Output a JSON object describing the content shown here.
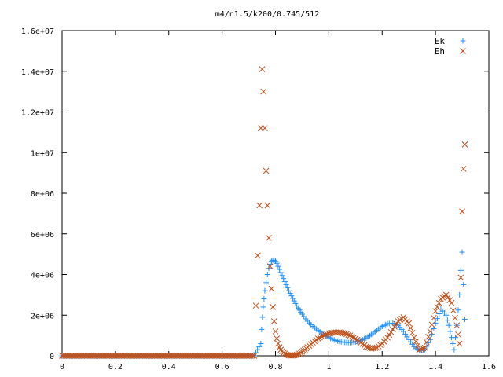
{
  "chart_data": {
    "type": "scatter",
    "title": "m4/n1.5/k200/0.745/512",
    "xlabel": "",
    "ylabel": "",
    "xlim": [
      0,
      1.6
    ],
    "ylim": [
      0,
      16000000
    ],
    "grid": false,
    "legend_position": "top-right",
    "x_ticks": [
      0,
      0.2,
      0.4,
      0.6,
      0.8,
      1.0,
      1.2,
      1.4,
      1.6
    ],
    "x_tick_labels": [
      "0",
      "0.2",
      "0.4",
      "0.6",
      "0.8",
      "1",
      "1.2",
      "1.4",
      "1.6"
    ],
    "y_ticks": [
      0,
      2000000,
      4000000,
      6000000,
      8000000,
      10000000,
      12000000,
      14000000,
      16000000
    ],
    "y_tick_labels": [
      "0",
      "2e+06",
      "4e+06",
      "6e+06",
      "8e+06",
      "1e+07",
      "1.2e+07",
      "1.4e+07",
      "1.6e+07"
    ],
    "series": [
      {
        "name": "Ek",
        "marker": "plus",
        "color": "#1f8fff",
        "x": [
          0,
          0.025,
          0.05,
          0.075,
          0.1,
          0.125,
          0.15,
          0.175,
          0.2,
          0.225,
          0.25,
          0.275,
          0.3,
          0.325,
          0.35,
          0.375,
          0.4,
          0.425,
          0.45,
          0.475,
          0.5,
          0.525,
          0.55,
          0.575,
          0.6,
          0.625,
          0.65,
          0.675,
          0.7,
          0.72,
          0.745,
          0.748,
          0.751,
          0.754,
          0.757,
          0.76,
          0.765,
          0.77,
          0.775,
          0.78,
          0.785,
          0.79,
          0.795,
          0.8,
          0.805,
          0.81,
          0.815,
          0.82,
          0.83,
          0.84,
          0.85,
          0.86,
          0.87,
          0.88,
          0.89,
          0.9,
          0.92,
          0.94,
          0.96,
          0.98,
          1.0,
          1.02,
          1.04,
          1.06,
          1.08,
          1.1,
          1.12,
          1.14,
          1.16,
          1.18,
          1.2,
          1.22,
          1.24,
          1.26,
          1.28,
          1.3,
          1.32,
          1.34,
          1.36,
          1.38,
          1.4,
          1.42,
          1.44,
          1.45,
          1.46,
          1.47,
          1.48,
          1.49,
          1.495,
          1.5,
          1.505,
          1.51
        ],
        "y": [
          0,
          0,
          0,
          0,
          0,
          0,
          0,
          0,
          0,
          0,
          0,
          0,
          0,
          0,
          0,
          0,
          0,
          0,
          0,
          0,
          0,
          0,
          0,
          0,
          0,
          0,
          0,
          0,
          0,
          0,
          600000,
          1300000,
          1900000,
          2400000,
          2800000,
          3200000,
          3600000,
          4000000,
          4300000,
          4500000,
          4650000,
          4700000,
          4700000,
          4650000,
          4550000,
          4400000,
          4250000,
          4100000,
          3800000,
          3500000,
          3200000,
          2950000,
          2700000,
          2450000,
          2250000,
          2050000,
          1700000,
          1450000,
          1250000,
          1050000,
          900000,
          780000,
          700000,
          660000,
          650000,
          680000,
          750000,
          880000,
          1050000,
          1250000,
          1450000,
          1580000,
          1600000,
          1500000,
          1200000,
          800000,
          450000,
          250000,
          300000,
          800000,
          1600000,
          2300000,
          2000000,
          1500000,
          900000,
          300000,
          1500000,
          3000000,
          4200000,
          5100000,
          3500000,
          1800000
        ],
        "note_x_end": 1.515
      },
      {
        "name": "Eh",
        "marker": "cross",
        "color": "#c0501a",
        "x": [
          0,
          0.025,
          0.05,
          0.075,
          0.1,
          0.125,
          0.15,
          0.175,
          0.2,
          0.225,
          0.25,
          0.275,
          0.3,
          0.325,
          0.35,
          0.375,
          0.4,
          0.425,
          0.45,
          0.475,
          0.5,
          0.525,
          0.55,
          0.575,
          0.6,
          0.625,
          0.65,
          0.675,
          0.7,
          0.72,
          0.74,
          0.745,
          0.75,
          0.755,
          0.76,
          0.765,
          0.77,
          0.775,
          0.78,
          0.785,
          0.79,
          0.795,
          0.8,
          0.805,
          0.81,
          0.815,
          0.82,
          0.83,
          0.84,
          0.85,
          0.86,
          0.87,
          0.88,
          0.89,
          0.9,
          0.91,
          0.92,
          0.94,
          0.96,
          0.98,
          1.0,
          1.02,
          1.04,
          1.06,
          1.08,
          1.1,
          1.12,
          1.14,
          1.16,
          1.18,
          1.2,
          1.22,
          1.24,
          1.26,
          1.28,
          1.3,
          1.32,
          1.34,
          1.36,
          1.38,
          1.4,
          1.42,
          1.44,
          1.46,
          1.48,
          1.49,
          1.5,
          1.505,
          1.51
        ],
        "y": [
          0,
          0,
          0,
          0,
          0,
          0,
          0,
          0,
          0,
          0,
          0,
          0,
          0,
          0,
          0,
          0,
          0,
          0,
          0,
          0,
          0,
          0,
          0,
          0,
          0,
          0,
          0,
          0,
          0,
          0,
          7400000,
          11200000,
          14100000,
          13000000,
          11200000,
          9100000,
          7400000,
          5800000,
          4400000,
          3300000,
          2400000,
          1700000,
          1200000,
          850000,
          600000,
          420000,
          300000,
          150000,
          60000,
          20000,
          10000,
          20000,
          50000,
          100000,
          200000,
          300000,
          420000,
          650000,
          850000,
          1000000,
          1100000,
          1150000,
          1150000,
          1100000,
          1000000,
          850000,
          650000,
          450000,
          350000,
          400000,
          600000,
          900000,
          1300000,
          1700000,
          1900000,
          1600000,
          900000,
          300000,
          400000,
          1200000,
          2200000,
          2800000,
          3000000,
          2600000,
          1500000,
          600000,
          7100000,
          9200000,
          10400000
        ]
      }
    ]
  }
}
